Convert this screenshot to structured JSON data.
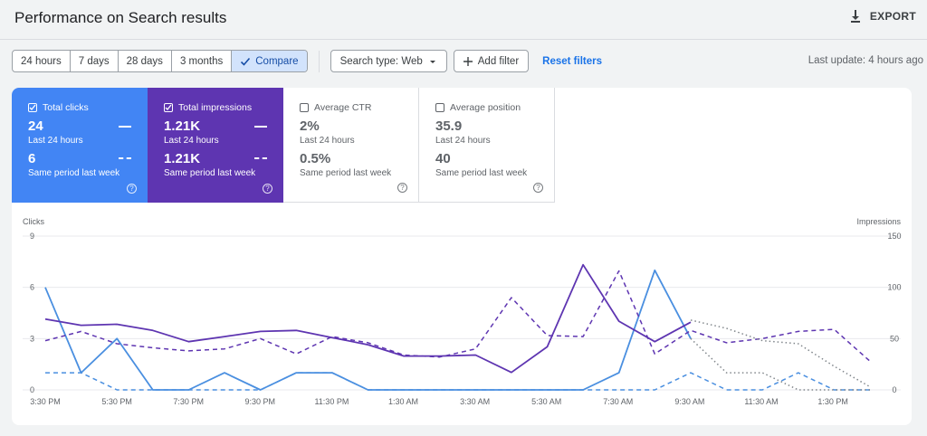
{
  "header": {
    "title": "Performance on Search results",
    "export_label": "EXPORT"
  },
  "filters": {
    "ranges": [
      "24 hours",
      "7 days",
      "28 days",
      "3 months"
    ],
    "compare_label": "Compare",
    "search_type": "Search type: Web",
    "add_filter": "Add filter",
    "reset": "Reset filters",
    "last_update": "Last update: 4 hours ago"
  },
  "metrics": [
    {
      "label": "Total clicks",
      "checked": true,
      "value": "24",
      "value_label": "Last 24 hours",
      "compare_value": "6",
      "compare_label": "Same period last week",
      "color": "#4285f4"
    },
    {
      "label": "Total impressions",
      "checked": true,
      "value": "1.21K",
      "value_label": "Last 24 hours",
      "compare_value": "1.21K",
      "compare_label": "Same period last week",
      "color": "#5e35b1"
    },
    {
      "label": "Average CTR",
      "checked": false,
      "value": "2%",
      "value_label": "Last 24 hours",
      "compare_value": "0.5%",
      "compare_label": "Same period last week"
    },
    {
      "label": "Average position",
      "checked": false,
      "value": "35.9",
      "value_label": "Last 24 hours",
      "compare_value": "40",
      "compare_label": "Same period last week"
    }
  ],
  "chart_data": {
    "type": "line",
    "left_axis": {
      "label": "Clicks",
      "ticks": [
        0,
        3,
        6,
        9
      ],
      "range": [
        0,
        9
      ]
    },
    "right_axis": {
      "label": "Impressions",
      "ticks": [
        0,
        50,
        100,
        150
      ],
      "range": [
        0,
        150
      ]
    },
    "x_tick_labels": [
      "3:30 PM",
      "5:30 PM",
      "7:30 PM",
      "9:30 PM",
      "11:30 PM",
      "1:30 AM",
      "3:30 AM",
      "5:30 AM",
      "7:30 AM",
      "9:30 AM",
      "11:30 AM",
      "1:30 PM"
    ],
    "colors": {
      "clicks": "#4a8fe0",
      "impressions": "#5e35b1",
      "grid": "#e8eaed"
    },
    "series": [
      {
        "metric": "clicks",
        "period": "current",
        "style": "solid",
        "axis": "left",
        "values": [
          6,
          1,
          3,
          0,
          0,
          1,
          0,
          1,
          1,
          0,
          0,
          0,
          0,
          0,
          0,
          0,
          1,
          7,
          3
        ]
      },
      {
        "metric": "clicks",
        "period": "previous",
        "style": "dashed",
        "axis": "left",
        "values": [
          1,
          1,
          0,
          0,
          0,
          0,
          0,
          1,
          1,
          0,
          0,
          0,
          0,
          0,
          0,
          0,
          0,
          0,
          1,
          0,
          0,
          1,
          0,
          0
        ]
      },
      {
        "metric": "clicks",
        "period": "partial",
        "style": "dotted",
        "axis": "left",
        "values": [
          null,
          null,
          null,
          null,
          null,
          null,
          null,
          null,
          null,
          null,
          null,
          null,
          null,
          null,
          null,
          null,
          null,
          null,
          3,
          1,
          1,
          0,
          0,
          0
        ]
      },
      {
        "metric": "impressions",
        "period": "current",
        "style": "solid",
        "axis": "right",
        "values": [
          69,
          63,
          64,
          58,
          47,
          52,
          57,
          58,
          51,
          44,
          33,
          33,
          34,
          17,
          42,
          122,
          67,
          47,
          66
        ]
      },
      {
        "metric": "impressions",
        "period": "previous",
        "style": "dashed",
        "axis": "right",
        "values": [
          48,
          57,
          45,
          41,
          38,
          40,
          50,
          35,
          52,
          46,
          34,
          32,
          40,
          90,
          53,
          52,
          116,
          35,
          58,
          46,
          50,
          57,
          59,
          28
        ]
      },
      {
        "metric": "impressions",
        "period": "partial",
        "style": "dotted",
        "axis": "right",
        "values": [
          null,
          null,
          null,
          null,
          null,
          null,
          null,
          null,
          null,
          null,
          null,
          null,
          null,
          null,
          null,
          null,
          null,
          null,
          68,
          60,
          48,
          45,
          23,
          3
        ]
      }
    ]
  }
}
